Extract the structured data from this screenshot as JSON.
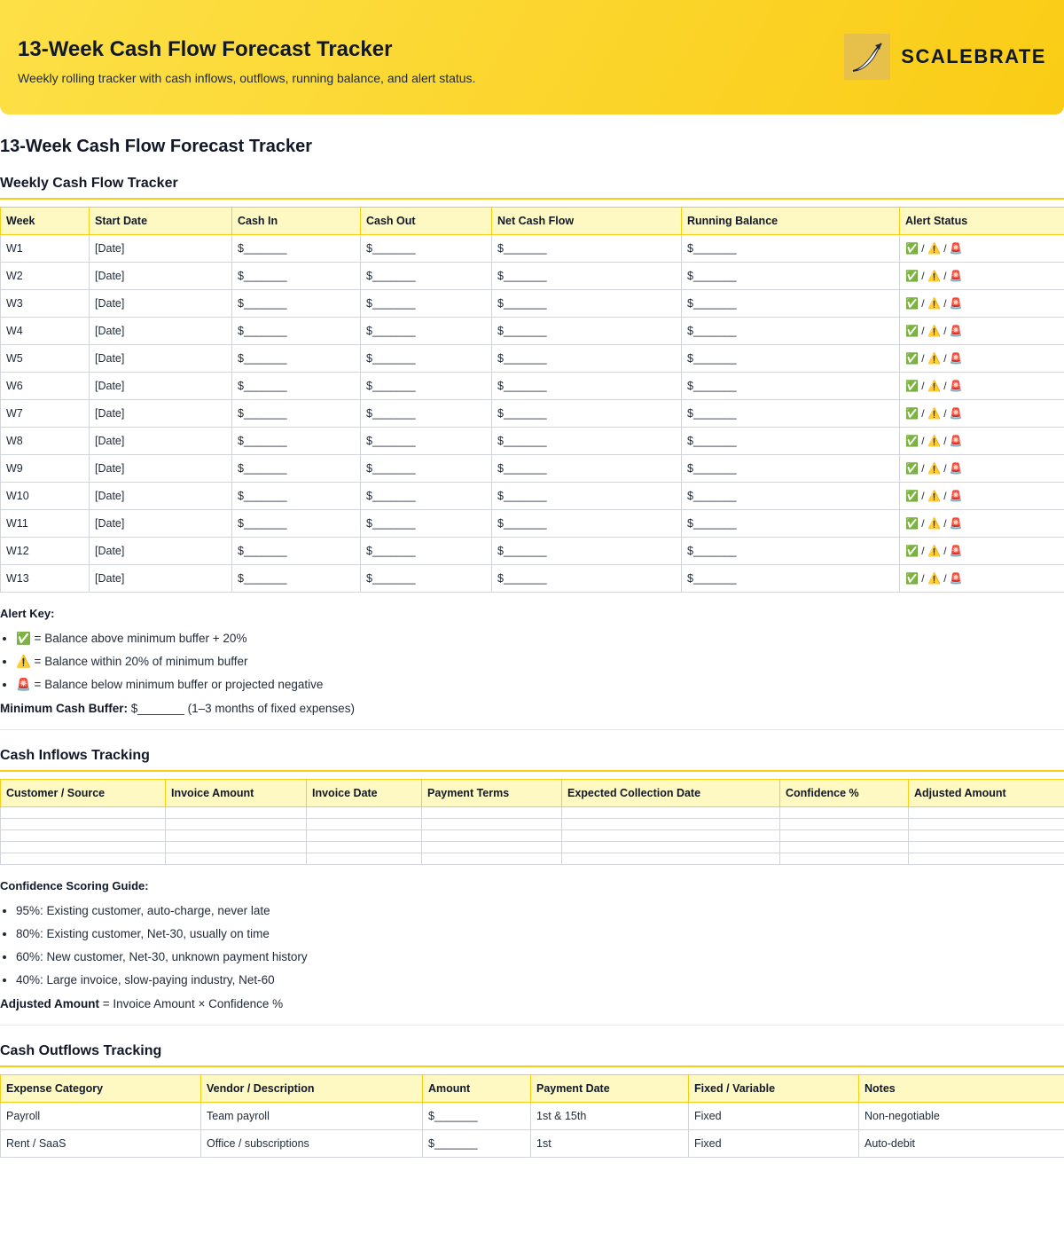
{
  "header": {
    "title": "13-Week Cash Flow Forecast Tracker",
    "subtitle": "Weekly rolling tracker with cash inflows, outflows, running balance, and alert status.",
    "brand_name": "SCALEBRATE",
    "brand_color": "#facc15"
  },
  "doc_title": "13-Week Cash Flow Forecast Tracker",
  "weekly": {
    "title": "Weekly Cash Flow Tracker",
    "columns": [
      "Week",
      "Start Date",
      "Cash In",
      "Cash Out",
      "Net Cash Flow",
      "Running Balance",
      "Alert Status"
    ],
    "rows": [
      [
        "W1",
        "[Date]",
        "$_______",
        "$_______",
        "$_______",
        "$_______",
        "✅ / ⚠️ / 🚨"
      ],
      [
        "W2",
        "[Date]",
        "$_______",
        "$_______",
        "$_______",
        "$_______",
        "✅ / ⚠️ / 🚨"
      ],
      [
        "W3",
        "[Date]",
        "$_______",
        "$_______",
        "$_______",
        "$_______",
        "✅ / ⚠️ / 🚨"
      ],
      [
        "W4",
        "[Date]",
        "$_______",
        "$_______",
        "$_______",
        "$_______",
        "✅ / ⚠️ / 🚨"
      ],
      [
        "W5",
        "[Date]",
        "$_______",
        "$_______",
        "$_______",
        "$_______",
        "✅ / ⚠️ / 🚨"
      ],
      [
        "W6",
        "[Date]",
        "$_______",
        "$_______",
        "$_______",
        "$_______",
        "✅ / ⚠️ / 🚨"
      ],
      [
        "W7",
        "[Date]",
        "$_______",
        "$_______",
        "$_______",
        "$_______",
        "✅ / ⚠️ / 🚨"
      ],
      [
        "W8",
        "[Date]",
        "$_______",
        "$_______",
        "$_______",
        "$_______",
        "✅ / ⚠️ / 🚨"
      ],
      [
        "W9",
        "[Date]",
        "$_______",
        "$_______",
        "$_______",
        "$_______",
        "✅ / ⚠️ / 🚨"
      ],
      [
        "W10",
        "[Date]",
        "$_______",
        "$_______",
        "$_______",
        "$_______",
        "✅ / ⚠️ / 🚨"
      ],
      [
        "W11",
        "[Date]",
        "$_______",
        "$_______",
        "$_______",
        "$_______",
        "✅ / ⚠️ / 🚨"
      ],
      [
        "W12",
        "[Date]",
        "$_______",
        "$_______",
        "$_______",
        "$_______",
        "✅ / ⚠️ / 🚨"
      ],
      [
        "W13",
        "[Date]",
        "$_______",
        "$_______",
        "$_______",
        "$_______",
        "✅ / ⚠️ / 🚨"
      ]
    ]
  },
  "alert_key": {
    "label": "Alert Key:",
    "items": [
      "✅ = Balance above minimum buffer + 20%",
      "⚠️ = Balance within 20% of minimum buffer",
      "🚨 = Balance below minimum buffer or projected negative"
    ],
    "buffer_label": "Minimum Cash Buffer:",
    "buffer_value": " $_______ (1–3 months of fixed expenses)"
  },
  "inflows": {
    "title": "Cash Inflows Tracking",
    "columns": [
      "Customer / Source",
      "Invoice Amount",
      "Invoice Date",
      "Payment Terms",
      "Expected Collection Date",
      "Confidence %",
      "Adjusted Amount"
    ],
    "empty_rows": 5
  },
  "confidence": {
    "label": "Confidence Scoring Guide:",
    "items": [
      "95%: Existing customer, auto-charge, never late",
      "80%: Existing customer, Net-30, usually on time",
      "60%: New customer, Net-30, unknown payment history",
      "40%: Large invoice, slow-paying industry, Net-60"
    ],
    "formula_label": "Adjusted Amount",
    "formula_text": " = Invoice Amount × Confidence %"
  },
  "outflows": {
    "title": "Cash Outflows Tracking",
    "columns": [
      "Expense Category",
      "Vendor / Description",
      "Amount",
      "Payment Date",
      "Fixed / Variable",
      "Notes"
    ],
    "rows": [
      [
        "Payroll",
        "Team payroll",
        "$_______",
        "1st & 15th",
        "Fixed",
        "Non-negotiable"
      ],
      [
        "Rent / SaaS",
        "Office / subscriptions",
        "$_______",
        "1st",
        "Fixed",
        "Auto-debit"
      ]
    ]
  }
}
